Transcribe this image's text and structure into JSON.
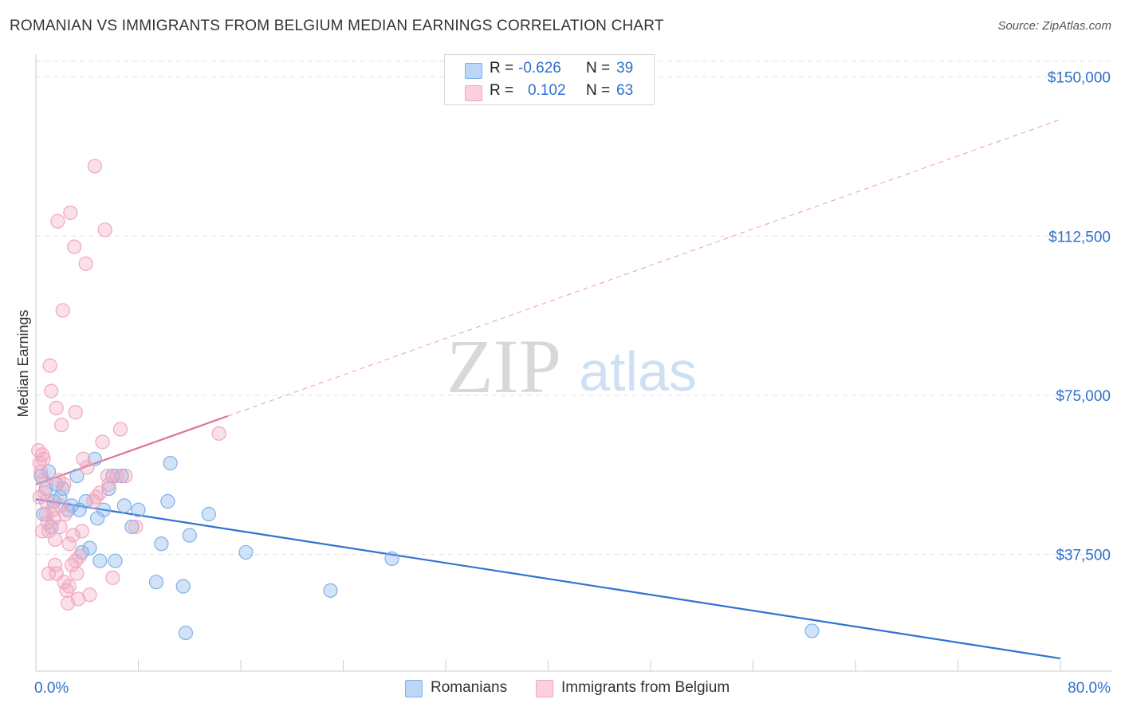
{
  "title": "ROMANIAN VS IMMIGRANTS FROM BELGIUM MEDIAN EARNINGS CORRELATION CHART",
  "source": "Source: ZipAtlas.com",
  "watermark": {
    "zip": "ZIP",
    "atlas": "atlas"
  },
  "stats": {
    "rows": [
      {
        "r_label": "R =",
        "r_value": "-0.626",
        "n_label": "N =",
        "n_value": "39",
        "color": "#a8c8f0"
      },
      {
        "r_label": "R =",
        "r_value": "0.102",
        "n_label": "N =",
        "n_value": "63",
        "color": "#f5b8cc"
      }
    ]
  },
  "legend": {
    "items": [
      {
        "label": "Romanians"
      },
      {
        "label": "Immigrants from Belgium"
      }
    ]
  },
  "chart_data": {
    "type": "scatter",
    "title": "ROMANIAN VS IMMIGRANTS FROM BELGIUM MEDIAN EARNINGS CORRELATION CHART",
    "xlabel": "",
    "ylabel": "Median Earnings",
    "xlim": [
      0,
      80
    ],
    "ylim": [
      10000,
      155000
    ],
    "x_tick_labels": [
      "0.0%",
      "80.0%"
    ],
    "y_ticks": [
      37500,
      75000,
      112500,
      150000
    ],
    "y_tick_labels": [
      "$37,500",
      "$75,000",
      "$112,500",
      "$150,000"
    ],
    "grid": true,
    "series": [
      {
        "name": "Romanians",
        "color": "#7fb0ea",
        "line_color": "#2e72d2",
        "points": [
          [
            0.4,
            56000
          ],
          [
            0.8,
            53000
          ],
          [
            1.0,
            57000
          ],
          [
            1.4,
            50000
          ],
          [
            1.6,
            54000
          ],
          [
            1.9,
            51000
          ],
          [
            2.1,
            53000
          ],
          [
            2.5,
            48000
          ],
          [
            2.8,
            49000
          ],
          [
            3.2,
            56000
          ],
          [
            3.4,
            48000
          ],
          [
            3.9,
            50000
          ],
          [
            3.6,
            38000
          ],
          [
            4.2,
            39000
          ],
          [
            4.6,
            60000
          ],
          [
            4.8,
            46000
          ],
          [
            5.0,
            36000
          ],
          [
            5.3,
            48000
          ],
          [
            5.7,
            53000
          ],
          [
            6.0,
            56000
          ],
          [
            6.2,
            36000
          ],
          [
            6.7,
            56000
          ],
          [
            6.9,
            49000
          ],
          [
            7.5,
            44000
          ],
          [
            8.0,
            48000
          ],
          [
            9.4,
            31000
          ],
          [
            9.8,
            40000
          ],
          [
            10.3,
            50000
          ],
          [
            10.5,
            59000
          ],
          [
            11.5,
            30000
          ],
          [
            11.7,
            19000
          ],
          [
            12.0,
            42000
          ],
          [
            13.5,
            47000
          ],
          [
            16.4,
            38000
          ],
          [
            23.0,
            29000
          ],
          [
            27.8,
            36500
          ],
          [
            60.6,
            19500
          ],
          [
            0.6,
            47000
          ],
          [
            1.2,
            44000
          ]
        ],
        "trend": {
          "x0": 0,
          "y0": 50500,
          "x1": 80,
          "y1": 13000,
          "dashed_from": null
        }
      },
      {
        "name": "Immigrants from Belgium",
        "color": "#f2a6be",
        "line_color": "#e07098",
        "points": [
          [
            0.2,
            62000
          ],
          [
            0.3,
            59000
          ],
          [
            0.4,
            57000
          ],
          [
            0.5,
            61000
          ],
          [
            0.6,
            55000
          ],
          [
            0.7,
            52000
          ],
          [
            0.8,
            50000
          ],
          [
            0.8,
            47000
          ],
          [
            0.9,
            45000
          ],
          [
            1.0,
            43000
          ],
          [
            1.1,
            82000
          ],
          [
            1.2,
            76000
          ],
          [
            1.3,
            48000
          ],
          [
            1.4,
            46000
          ],
          [
            1.5,
            41000
          ],
          [
            1.6,
            33000
          ],
          [
            1.6,
            72000
          ],
          [
            1.7,
            116000
          ],
          [
            1.8,
            55000
          ],
          [
            1.9,
            44000
          ],
          [
            2.0,
            68000
          ],
          [
            2.1,
            95000
          ],
          [
            2.2,
            54000
          ],
          [
            2.3,
            47000
          ],
          [
            2.4,
            29000
          ],
          [
            2.5,
            26000
          ],
          [
            2.6,
            40000
          ],
          [
            2.7,
            118000
          ],
          [
            2.8,
            35000
          ],
          [
            2.9,
            42000
          ],
          [
            3.0,
            110000
          ],
          [
            3.1,
            71000
          ],
          [
            3.2,
            33000
          ],
          [
            3.3,
            27000
          ],
          [
            3.4,
            37000
          ],
          [
            3.6,
            43000
          ],
          [
            3.7,
            60000
          ],
          [
            3.9,
            106000
          ],
          [
            4.0,
            58000
          ],
          [
            4.2,
            28000
          ],
          [
            4.5,
            50000
          ],
          [
            4.7,
            51000
          ],
          [
            5.0,
            52000
          ],
          [
            5.2,
            64000
          ],
          [
            5.4,
            114000
          ],
          [
            5.6,
            56000
          ],
          [
            5.7,
            54000
          ],
          [
            4.6,
            129000
          ],
          [
            6.0,
            32000
          ],
          [
            6.3,
            56000
          ],
          [
            6.6,
            67000
          ],
          [
            7.0,
            56000
          ],
          [
            7.8,
            44000
          ],
          [
            14.3,
            66000
          ],
          [
            0.5,
            43000
          ],
          [
            1.0,
            33000
          ],
          [
            1.5,
            35000
          ],
          [
            2.2,
            31000
          ],
          [
            2.6,
            30000
          ],
          [
            3.1,
            36000
          ],
          [
            0.3,
            51000
          ],
          [
            1.9,
            49000
          ],
          [
            0.6,
            60000
          ]
        ],
        "trend": {
          "x0": 0,
          "y0": 54000,
          "x1": 80,
          "y1": 140000,
          "dashed_from": 15
        }
      }
    ]
  }
}
